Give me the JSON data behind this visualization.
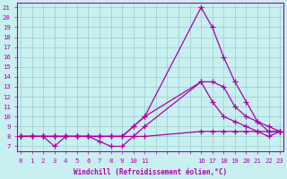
{
  "bg_color": "#c8f0f0",
  "line_color": "#aa00aa",
  "grid_color": "#99cccc",
  "xlabel": "Windchill (Refroidissement éolien,°C)",
  "ylim": [
    6.5,
    21.5
  ],
  "yticks": [
    7,
    8,
    9,
    10,
    11,
    12,
    13,
    14,
    15,
    16,
    17,
    18,
    19,
    20,
    21
  ],
  "xtick_positions": [
    0,
    1,
    2,
    3,
    4,
    5,
    6,
    7,
    8,
    9,
    10,
    11,
    12,
    16,
    17,
    18,
    19,
    20,
    21,
    22,
    23
  ],
  "xtick_labels": [
    "0",
    "1",
    "2",
    "3",
    "4",
    "5",
    "6",
    "7",
    "8",
    "9",
    "10",
    "11",
    "",
    "16",
    "17",
    "18",
    "19",
    "20",
    "21",
    "22",
    "23"
  ],
  "xlim": [
    -0.3,
    23.3
  ],
  "series": [
    {
      "x": [
        0,
        1,
        2,
        3,
        4,
        5,
        6,
        7,
        8,
        9,
        10,
        11,
        16,
        17,
        18,
        19,
        20,
        21,
        22,
        23
      ],
      "y": [
        8.0,
        8.0,
        8.0,
        8.0,
        8.0,
        8.0,
        8.0,
        8.0,
        8.0,
        8.0,
        9.0,
        10.0,
        21.0,
        19.0,
        16.0,
        13.5,
        11.5,
        9.5,
        9.0,
        8.5
      ]
    },
    {
      "x": [
        0,
        1,
        2,
        3,
        4,
        5,
        6,
        7,
        8,
        9,
        10,
        11,
        16,
        17,
        18,
        19,
        20,
        21,
        22,
        23
      ],
      "y": [
        8.0,
        8.0,
        8.0,
        7.0,
        8.0,
        8.0,
        8.0,
        7.5,
        7.0,
        7.0,
        8.0,
        9.0,
        13.5,
        11.5,
        10.0,
        9.5,
        9.0,
        8.5,
        8.0,
        8.5
      ]
    },
    {
      "x": [
        0,
        1,
        2,
        3,
        4,
        5,
        6,
        7,
        8,
        9,
        10,
        11,
        16,
        17,
        18,
        19,
        20,
        21,
        22,
        23
      ],
      "y": [
        8.0,
        8.0,
        8.0,
        8.0,
        8.0,
        8.0,
        8.0,
        8.0,
        8.0,
        8.0,
        9.0,
        10.0,
        13.5,
        13.5,
        13.0,
        11.0,
        10.0,
        9.5,
        8.5,
        8.5
      ]
    },
    {
      "x": [
        0,
        1,
        2,
        3,
        4,
        5,
        6,
        7,
        8,
        9,
        10,
        11,
        16,
        17,
        18,
        19,
        20,
        21,
        22,
        23
      ],
      "y": [
        8.0,
        8.0,
        8.0,
        8.0,
        8.0,
        8.0,
        8.0,
        8.0,
        8.0,
        8.0,
        8.0,
        8.0,
        8.5,
        8.5,
        8.5,
        8.5,
        8.5,
        8.5,
        8.5,
        8.5
      ]
    }
  ]
}
